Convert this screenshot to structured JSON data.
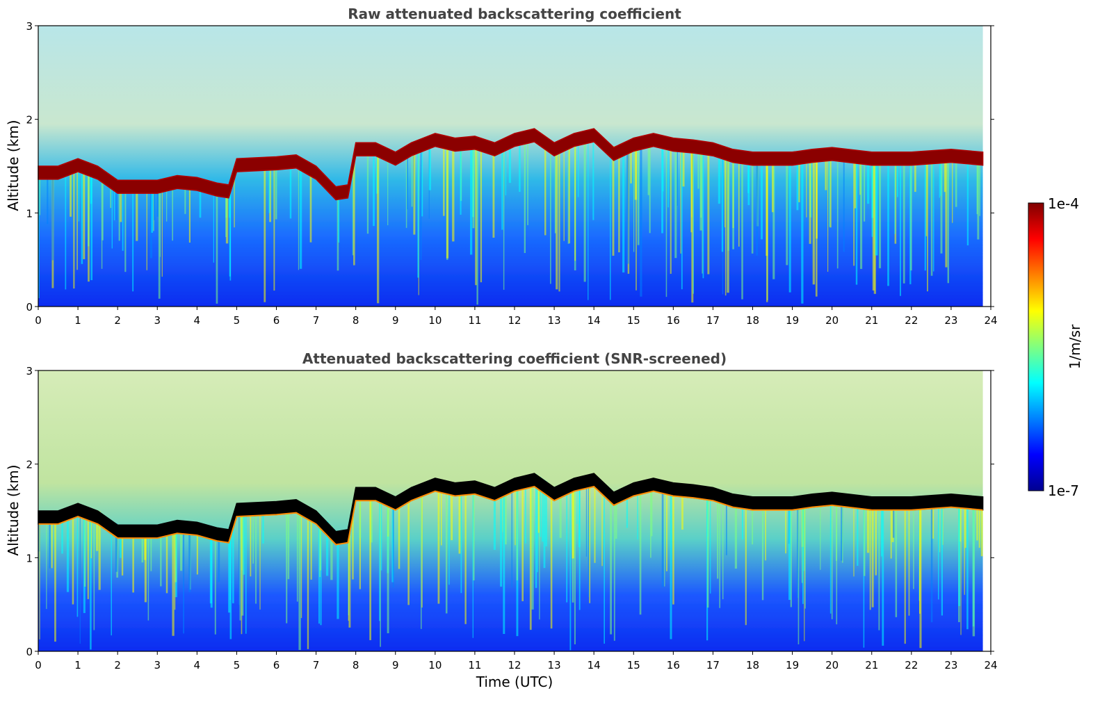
{
  "chart_data": [
    {
      "type": "heatmap",
      "title": "Raw attenuated backscattering coefficient",
      "ylabel": "Altitude (km)",
      "xlabel": "",
      "xlim": [
        0,
        24
      ],
      "ylim": [
        0,
        3
      ],
      "x_ticks": [
        "0",
        "1",
        "2",
        "3",
        "4",
        "5",
        "6",
        "7",
        "8",
        "9",
        "10",
        "11",
        "12",
        "13",
        "14",
        "15",
        "16",
        "17",
        "18",
        "19",
        "20",
        "21",
        "22",
        "23",
        "24"
      ],
      "y_ticks": [
        "0",
        "1",
        "2",
        "3"
      ],
      "data_end_hour": 23.8,
      "color_scale": "log",
      "cloud_top_km": [
        [
          0,
          1.5
        ],
        [
          0.5,
          1.5
        ],
        [
          1,
          1.58
        ],
        [
          1.5,
          1.5
        ],
        [
          2,
          1.35
        ],
        [
          2.5,
          1.35
        ],
        [
          3,
          1.35
        ],
        [
          3.5,
          1.4
        ],
        [
          4,
          1.38
        ],
        [
          4.5,
          1.32
        ],
        [
          4.8,
          1.3
        ],
        [
          5,
          1.58
        ],
        [
          6,
          1.6
        ],
        [
          6.5,
          1.62
        ],
        [
          7,
          1.5
        ],
        [
          7.5,
          1.28
        ],
        [
          7.8,
          1.3
        ],
        [
          8,
          1.75
        ],
        [
          8.5,
          1.75
        ],
        [
          9,
          1.65
        ],
        [
          9.4,
          1.75
        ],
        [
          10,
          1.85
        ],
        [
          10.5,
          1.8
        ],
        [
          11,
          1.82
        ],
        [
          11.5,
          1.75
        ],
        [
          12,
          1.85
        ],
        [
          12.5,
          1.9
        ],
        [
          13,
          1.75
        ],
        [
          13.5,
          1.85
        ],
        [
          14,
          1.9
        ],
        [
          14.5,
          1.7
        ],
        [
          15,
          1.8
        ],
        [
          15.5,
          1.85
        ],
        [
          16,
          1.8
        ],
        [
          16.5,
          1.78
        ],
        [
          17,
          1.75
        ],
        [
          17.5,
          1.68
        ],
        [
          18,
          1.65
        ],
        [
          19,
          1.65
        ],
        [
          19.5,
          1.68
        ],
        [
          20,
          1.7
        ],
        [
          21,
          1.65
        ],
        [
          22,
          1.65
        ],
        [
          23,
          1.68
        ],
        [
          23.8,
          1.65
        ]
      ]
    },
    {
      "type": "heatmap",
      "title": "Attenuated backscattering coefficient (SNR-screened)",
      "ylabel": "Altitude (km)",
      "xlabel": "Time (UTC)",
      "xlim": [
        0,
        24
      ],
      "ylim": [
        0,
        3
      ],
      "x_ticks": [
        "0",
        "1",
        "2",
        "3",
        "4",
        "5",
        "6",
        "7",
        "8",
        "9",
        "10",
        "11",
        "12",
        "13",
        "14",
        "15",
        "16",
        "17",
        "18",
        "19",
        "20",
        "21",
        "22",
        "23",
        "24"
      ],
      "y_ticks": [
        "0",
        "1",
        "2",
        "3"
      ],
      "data_end_hour": 23.8,
      "color_scale": "log",
      "cloud_top_km": [
        [
          0,
          1.5
        ],
        [
          0.5,
          1.5
        ],
        [
          1,
          1.58
        ],
        [
          1.5,
          1.5
        ],
        [
          2,
          1.35
        ],
        [
          2.5,
          1.35
        ],
        [
          3,
          1.35
        ],
        [
          3.5,
          1.4
        ],
        [
          4,
          1.38
        ],
        [
          4.5,
          1.32
        ],
        [
          4.8,
          1.3
        ],
        [
          5,
          1.58
        ],
        [
          6,
          1.6
        ],
        [
          6.5,
          1.62
        ],
        [
          7,
          1.5
        ],
        [
          7.5,
          1.28
        ],
        [
          7.8,
          1.3
        ],
        [
          8,
          1.75
        ],
        [
          8.5,
          1.75
        ],
        [
          9,
          1.65
        ],
        [
          9.4,
          1.75
        ],
        [
          10,
          1.85
        ],
        [
          10.5,
          1.8
        ],
        [
          11,
          1.82
        ],
        [
          11.5,
          1.75
        ],
        [
          12,
          1.85
        ],
        [
          12.5,
          1.9
        ],
        [
          13,
          1.75
        ],
        [
          13.5,
          1.85
        ],
        [
          14,
          1.9
        ],
        [
          14.5,
          1.7
        ],
        [
          15,
          1.8
        ],
        [
          15.5,
          1.85
        ],
        [
          16,
          1.8
        ],
        [
          16.5,
          1.78
        ],
        [
          17,
          1.75
        ],
        [
          17.5,
          1.68
        ],
        [
          18,
          1.65
        ],
        [
          19,
          1.65
        ],
        [
          19.5,
          1.68
        ],
        [
          20,
          1.7
        ],
        [
          21,
          1.65
        ],
        [
          22,
          1.65
        ],
        [
          23,
          1.68
        ],
        [
          23.8,
          1.65
        ]
      ]
    }
  ],
  "colorbar": {
    "label": "1/m/sr",
    "max_label": "1e-4",
    "min_label": "1e-7",
    "colormap": "jet",
    "stops": [
      "#000090",
      "#0000ff",
      "#0080ff",
      "#00ffff",
      "#80ff80",
      "#ffff00",
      "#ff8000",
      "#ff0000",
      "#800000"
    ],
    "lowest_colors": [
      "#e0e0ff",
      "#c0c0ff",
      "#a0a0ff"
    ]
  }
}
